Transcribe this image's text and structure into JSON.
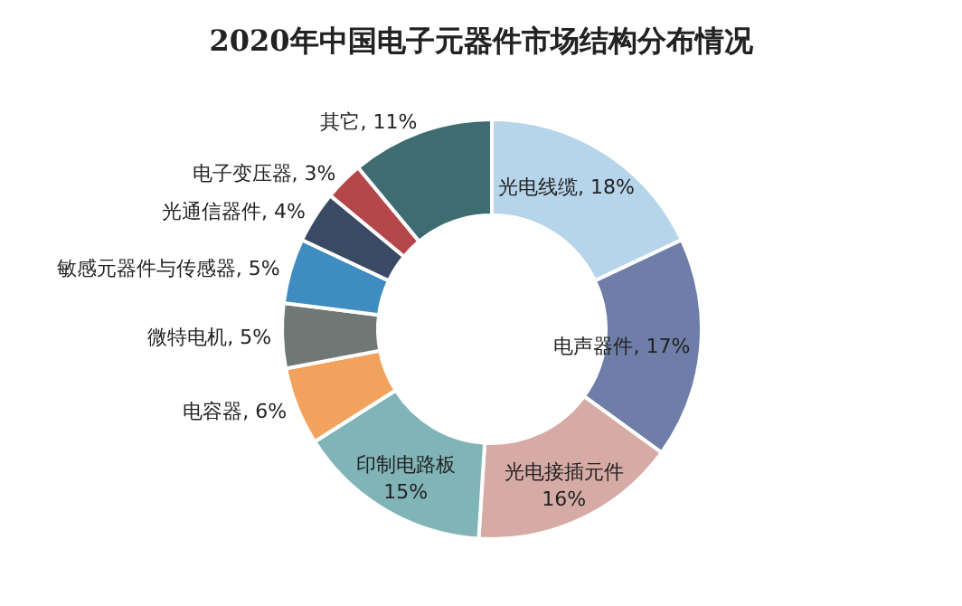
{
  "chart_data": {
    "type": "donut",
    "title": "2020年中国电子元器件市场结构分布情况",
    "categories": [
      "光电线缆",
      "电声器件",
      "光电接插元件",
      "印制电路板",
      "电容器",
      "微特电机",
      "敏感元器件与传感器",
      "光通信器件",
      "电子变压器",
      "其它"
    ],
    "values": [
      18,
      17,
      16,
      15,
      6,
      5,
      5,
      4,
      3,
      11
    ],
    "value_labels": [
      "18%",
      "17%",
      "16%",
      "15%",
      "6%",
      "5%",
      "5%",
      "4%",
      "3%",
      "11%"
    ],
    "colors": [
      "#b7d5ea",
      "#6f7ea8",
      "#d6aaa5",
      "#80b4b6",
      "#f2a25c",
      "#6f7874",
      "#3e8cc0",
      "#3b4a64",
      "#b5474b",
      "#3e6c71"
    ]
  }
}
